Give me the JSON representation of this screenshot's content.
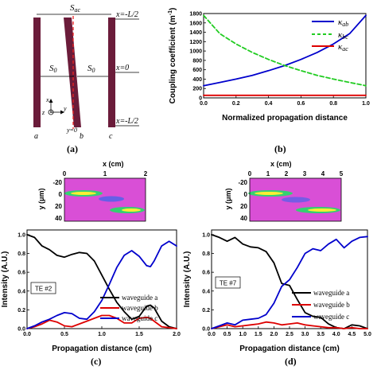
{
  "panels": [
    {
      "label": "(a)"
    },
    {
      "label": "(b)"
    },
    {
      "label": "(c)"
    },
    {
      "label": "(d)"
    }
  ],
  "schematic": {
    "s_ac": "S",
    "s_ac_sub": "ac",
    "s0": "S",
    "s0_sub": "0",
    "x_top": "x=-L/2",
    "x_mid": "x=0",
    "x_bot": "x=-L/2",
    "y0": "y=0",
    "wg_a": "a",
    "wg_b": "b",
    "wg_c": "c",
    "axis_x": "x",
    "axis_y": "y",
    "axis_z": "z"
  },
  "panel_b": {
    "ylabel": "Coupling coefficient (m",
    "ylabel_sup": "-1",
    "ylabel_end": ")",
    "xlabel": "Normalized propagation distance",
    "legend": [
      {
        "sym": "κ",
        "sub": "ab",
        "color": "#0000cc"
      },
      {
        "sym": "κ",
        "sub": "bc",
        "color": "#22cc22"
      },
      {
        "sym": "κ",
        "sub": "ac",
        "color": "#dd0000"
      }
    ],
    "yticks": [
      "0",
      "200",
      "400",
      "600",
      "800",
      "1000",
      "1200",
      "1400",
      "1600",
      "1800"
    ],
    "xticks": [
      "0.0",
      "0.2",
      "0.4",
      "0.6",
      "0.8",
      "1.0"
    ]
  },
  "panel_c": {
    "map_xlabel": "x (cm)",
    "map_ylabel": "y (μm)",
    "map_xticks": [
      "0",
      "1",
      "2"
    ],
    "map_yticks": [
      "-20",
      "0",
      "20",
      "40"
    ],
    "badge": "TE #2",
    "ylabel": "Intensity (A.U.)",
    "xlabel": "Propagation distance (cm)",
    "yticks": [
      "0.0",
      "0.2",
      "0.4",
      "0.6",
      "0.8",
      "1.0"
    ],
    "xticks": [
      "0.0",
      "0.5",
      "1.0",
      "1.5",
      "2.0"
    ],
    "legend": [
      "waveguide a",
      "waveguide b",
      "waveguide c"
    ]
  },
  "panel_d": {
    "map_xlabel": "x (cm)",
    "map_ylabel": "y (μm)",
    "map_xticks": [
      "0",
      "1",
      "2",
      "3",
      "4",
      "5"
    ],
    "map_yticks": [
      "-20",
      "0",
      "20",
      "40"
    ],
    "badge": "TE #7",
    "ylabel": "Intensity (A.U.)",
    "xlabel": "Propagation distance (cm)",
    "yticks": [
      "0.0",
      "0.2",
      "0.4",
      "0.6",
      "0.8",
      "1.0"
    ],
    "xticks": [
      "0.0",
      "0.5",
      "1.0",
      "1.5",
      "2.0",
      "2.5",
      "3.0",
      "3.5",
      "4.0",
      "4.5",
      "5.0"
    ],
    "legend": [
      "waveguide a",
      "waveguide b",
      "waveguide c"
    ]
  },
  "chart_data": [
    {
      "type": "line",
      "xlabel": "Normalized propagation distance",
      "ylabel": "Coupling coefficient (m-1)",
      "xlim": [
        0,
        1
      ],
      "ylim": [
        0,
        1800
      ],
      "x": [
        0,
        0.1,
        0.2,
        0.3,
        0.4,
        0.5,
        0.6,
        0.7,
        0.8,
        0.9,
        1.0
      ],
      "series": [
        {
          "name": "κab",
          "color": "#0000cc",
          "dash": "solid",
          "values": [
            260,
            330,
            400,
            480,
            580,
            690,
            820,
            970,
            1150,
            1370,
            1760
          ]
        },
        {
          "name": "κbc",
          "color": "#22cc22",
          "dash": "dash",
          "values": [
            1760,
            1370,
            1150,
            970,
            820,
            690,
            580,
            480,
            400,
            330,
            260
          ]
        },
        {
          "name": "κac",
          "color": "#dd0000",
          "dash": "solid",
          "values": [
            55,
            55,
            55,
            55,
            55,
            55,
            55,
            55,
            55,
            55,
            55
          ]
        }
      ]
    },
    {
      "type": "line",
      "xlabel": "Propagation distance (cm)",
      "ylabel": "Intensity (A.U.)",
      "xlim": [
        0,
        2.0
      ],
      "ylim": [
        0,
        1.05
      ],
      "x": [
        0,
        0.1,
        0.2,
        0.3,
        0.4,
        0.5,
        0.6,
        0.7,
        0.8,
        0.9,
        1.0,
        1.1,
        1.2,
        1.3,
        1.4,
        1.5,
        1.6,
        1.65,
        1.7,
        1.8,
        1.9,
        2.0
      ],
      "series": [
        {
          "name": "waveguide a",
          "color": "#000000",
          "values": [
            1.0,
            0.97,
            0.88,
            0.84,
            0.78,
            0.76,
            0.79,
            0.81,
            0.8,
            0.72,
            0.57,
            0.42,
            0.28,
            0.18,
            0.1,
            0.13,
            0.24,
            0.25,
            0.22,
            0.08,
            0.02,
            0.0
          ]
        },
        {
          "name": "waveguide b",
          "color": "#dd0000",
          "values": [
            0.0,
            0.02,
            0.05,
            0.09,
            0.07,
            0.03,
            0.02,
            0.05,
            0.08,
            0.11,
            0.14,
            0.14,
            0.11,
            0.06,
            0.06,
            0.11,
            0.12,
            0.11,
            0.08,
            0.02,
            0.01,
            0.0
          ]
        },
        {
          "name": "waveguide c",
          "color": "#0000cc",
          "values": [
            0.0,
            0.03,
            0.07,
            0.1,
            0.14,
            0.17,
            0.16,
            0.11,
            0.1,
            0.18,
            0.3,
            0.47,
            0.65,
            0.78,
            0.83,
            0.77,
            0.67,
            0.66,
            0.72,
            0.88,
            0.93,
            0.88
          ]
        }
      ]
    },
    {
      "type": "line",
      "xlabel": "Propagation distance (cm)",
      "ylabel": "Intensity (A.U.)",
      "xlim": [
        0,
        5.0
      ],
      "ylim": [
        0,
        1.05
      ],
      "x": [
        0,
        0.25,
        0.5,
        0.75,
        1.0,
        1.25,
        1.5,
        1.75,
        2.0,
        2.25,
        2.5,
        2.75,
        3.0,
        3.25,
        3.5,
        3.75,
        4.0,
        4.25,
        4.5,
        4.75,
        5.0
      ],
      "series": [
        {
          "name": "waveguide a",
          "color": "#000000",
          "values": [
            1.0,
            0.97,
            0.93,
            0.97,
            0.9,
            0.87,
            0.86,
            0.82,
            0.7,
            0.48,
            0.46,
            0.31,
            0.17,
            0.13,
            0.12,
            0.05,
            0.01,
            0.0,
            0.04,
            0.03,
            0.0
          ]
        },
        {
          "name": "waveguide b",
          "color": "#dd0000",
          "values": [
            0.0,
            0.02,
            0.04,
            0.02,
            0.03,
            0.04,
            0.05,
            0.07,
            0.06,
            0.04,
            0.05,
            0.06,
            0.04,
            0.03,
            0.02,
            0.01,
            0.01,
            0.0,
            0.01,
            0.0,
            0.0
          ]
        },
        {
          "name": "waveguide c",
          "color": "#0000cc",
          "values": [
            0.0,
            0.03,
            0.06,
            0.04,
            0.09,
            0.1,
            0.11,
            0.15,
            0.27,
            0.45,
            0.52,
            0.65,
            0.8,
            0.85,
            0.83,
            0.9,
            0.95,
            0.86,
            0.93,
            0.97,
            0.98
          ]
        }
      ]
    }
  ]
}
